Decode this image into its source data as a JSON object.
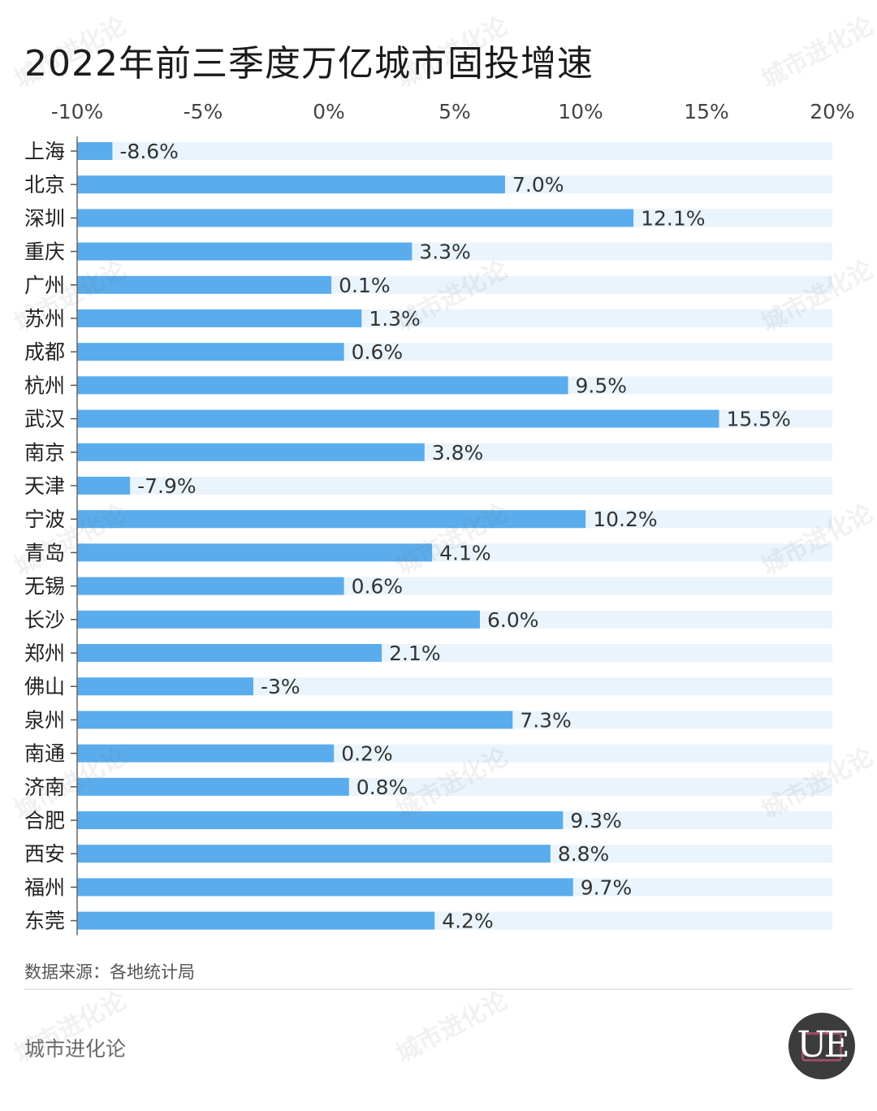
{
  "title": "2022年前三季度万亿城市固投增速",
  "source": "数据来源：各地统计局",
  "brand": "城市进化论",
  "logo_text": "UE",
  "watermark": "城市进化论",
  "colors": {
    "bar": "#5aacec",
    "track": "#eaf4fc",
    "text": "#222222",
    "axis": "#444444"
  },
  "chart_data": {
    "type": "bar",
    "orientation": "horizontal",
    "title": "2022年前三季度万亿城市固投增速",
    "xlim": [
      -10,
      20
    ],
    "x_ticks": [
      -10,
      -5,
      0,
      5,
      10,
      15,
      20
    ],
    "x_tick_labels": [
      "-10%",
      "-5%",
      "0%",
      "5%",
      "10%",
      "15%",
      "20%"
    ],
    "categories": [
      "上海",
      "北京",
      "深圳",
      "重庆",
      "广州",
      "苏州",
      "成都",
      "杭州",
      "武汉",
      "南京",
      "天津",
      "宁波",
      "青岛",
      "无锡",
      "长沙",
      "郑州",
      "佛山",
      "泉州",
      "南通",
      "济南",
      "合肥",
      "西安",
      "福州",
      "东莞"
    ],
    "values": [
      -8.6,
      7.0,
      12.1,
      3.3,
      0.1,
      1.3,
      0.6,
      9.5,
      15.5,
      3.8,
      -7.9,
      10.2,
      4.1,
      0.6,
      6.0,
      2.1,
      -3,
      7.3,
      0.2,
      0.8,
      9.3,
      8.8,
      9.7,
      4.2
    ],
    "value_labels": [
      "-8.6%",
      "7.0%",
      "12.1%",
      "3.3%",
      "0.1%",
      "1.3%",
      "0.6%",
      "9.5%",
      "15.5%",
      "3.8%",
      "-7.9%",
      "10.2%",
      "4.1%",
      "0.6%",
      "6.0%",
      "2.1%",
      "-3%",
      "7.3%",
      "0.2%",
      "0.8%",
      "9.3%",
      "8.8%",
      "9.7%",
      "4.2%"
    ],
    "grid": false,
    "legend": "none"
  }
}
